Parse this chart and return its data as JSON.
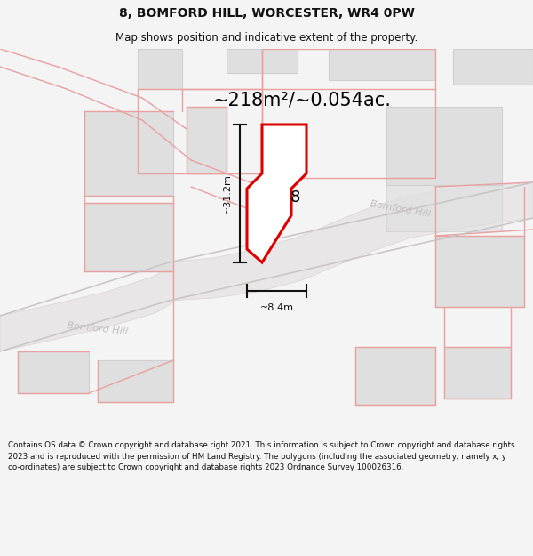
{
  "title": "8, BOMFORD HILL, WORCESTER, WR4 0PW",
  "subtitle": "Map shows position and indicative extent of the property.",
  "area_text": "~218m²/~0.054ac.",
  "dim_height": "~31.2m",
  "dim_width": "~8.4m",
  "label_number": "8",
  "street_upper": "Bomford Hill",
  "street_lower": "Bomford Hill",
  "footer": "Contains OS data © Crown copyright and database right 2021. This information is subject to Crown copyright and database rights 2023 and is reproduced with the permission of HM Land Registry. The polygons (including the associated geometry, namely x, y co-ordinates) are subject to Crown copyright and database rights 2023 Ordnance Survey 100026316.",
  "bg_color": "#f5f4f4",
  "map_bg": "#f8f7f7",
  "building_fill": "#e0dfdf",
  "building_edge": "#d0cfcf",
  "road_fill": "#e8e6e6",
  "road_edge": "#d5d3d3",
  "pink": "#e8a0a0",
  "plot_stroke": "#dd0000",
  "plot_fill": "#ffffff",
  "dim_color": "#111111",
  "street_color": "#c0bebe",
  "footer_color": "#111111",
  "title_color": "#111111"
}
